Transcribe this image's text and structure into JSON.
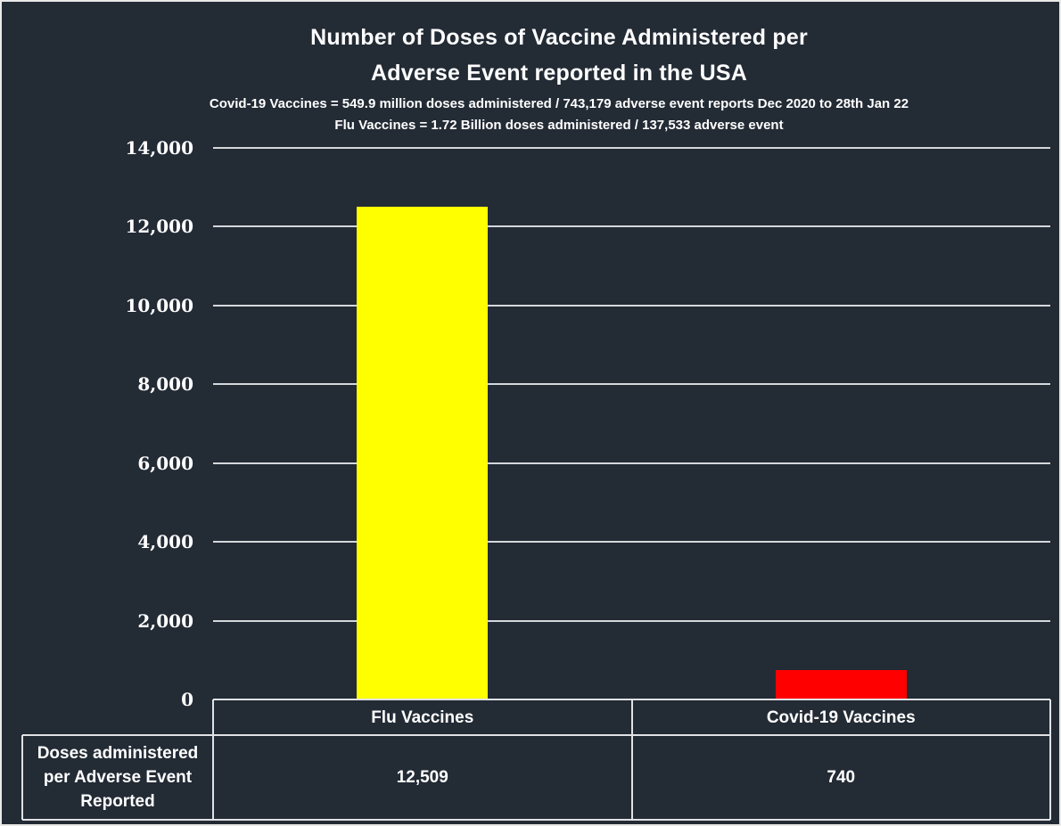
{
  "colors": {
    "background": "#232B35",
    "frame_border": "#E9E9E9",
    "gridline": "#D4D8DB",
    "table_border": "#E0E2E4",
    "text": "#FFFFFF"
  },
  "chart_data": {
    "type": "bar",
    "title_lines": [
      "Number of Doses of Vaccine Administered per",
      "Adverse Event reported in the USA"
    ],
    "subtitle_lines": [
      "Covid-19 Vaccines = 549.9 million doses administered / 743,179 adverse event reports Dec 2020 to 28th Jan 22",
      "Flu Vaccines = 1.72 Billion doses administered / 137,533 adverse event"
    ],
    "categories": [
      "Flu Vaccines",
      "Covid-19 Vaccines"
    ],
    "series": [
      {
        "name": "Doses administered per Adverse Event Reported",
        "values": [
          12509,
          740
        ],
        "value_labels": [
          "12,509",
          "740"
        ],
        "bar_colors": [
          "#FFFF00",
          "#FF0000"
        ]
      }
    ],
    "ylim": [
      0,
      14000
    ],
    "yticks": [
      0,
      2000,
      4000,
      6000,
      8000,
      10000,
      12000,
      14000
    ],
    "ytick_labels": [
      "0",
      "2,000",
      "4,000",
      "6,000",
      "8,000",
      "10,000",
      "12,000",
      "14,000"
    ],
    "grid": true,
    "legend_position": "none",
    "data_table_shown": true
  }
}
